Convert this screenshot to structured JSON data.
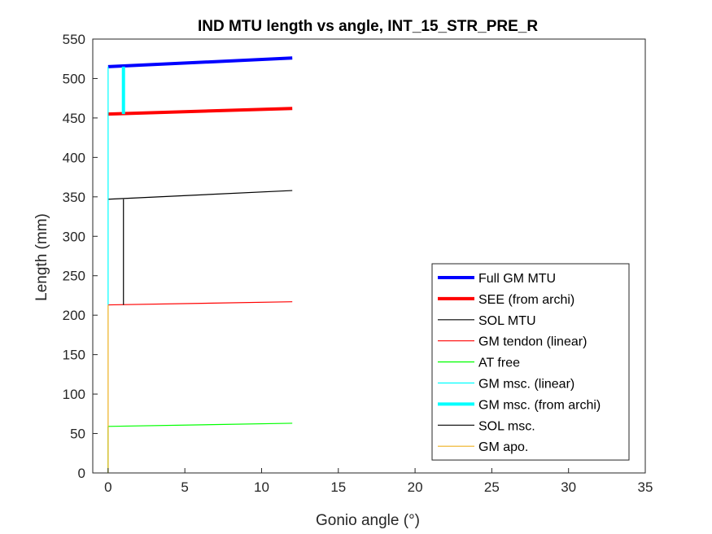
{
  "chart_data": {
    "type": "line",
    "title": "IND MTU length vs angle, INT_15_STR_PRE_R",
    "xlabel": "Gonio angle (°)",
    "ylabel": "Length (mm)",
    "xlim": [
      -1,
      35
    ],
    "ylim": [
      0,
      550
    ],
    "xticks": [
      "0",
      "5",
      "10",
      "15",
      "20",
      "25",
      "30",
      "35"
    ],
    "yticks": [
      "0",
      "50",
      "100",
      "150",
      "200",
      "250",
      "300",
      "350",
      "400",
      "450",
      "500",
      "550"
    ],
    "grid": false,
    "legend_position": "lower-right",
    "series": [
      {
        "name": "Full GM MTU",
        "color": "#0000ff",
        "width": "thick",
        "x": [
          0,
          12
        ],
        "y": [
          515,
          526
        ]
      },
      {
        "name": "SEE (from archi)",
        "color": "#ff0000",
        "width": "thick",
        "x": [
          0,
          12
        ],
        "y": [
          455,
          462
        ]
      },
      {
        "name": "SOL MTU",
        "color": "#000000",
        "width": "thin",
        "x": [
          0,
          12
        ],
        "y": [
          347,
          358
        ]
      },
      {
        "name": "GM tendon (linear)",
        "color": "#ff0000",
        "width": "thin",
        "x": [
          0,
          12
        ],
        "y": [
          213,
          217
        ]
      },
      {
        "name": "AT free",
        "color": "#00ff00",
        "width": "thin",
        "x": [
          0,
          12
        ],
        "y": [
          59,
          63
        ]
      },
      {
        "name": "GM msc. (linear)",
        "color": "#00ffff",
        "width": "thin",
        "x": [
          0,
          0
        ],
        "y": [
          213,
          515
        ]
      },
      {
        "name": "GM msc. (from archi)",
        "color": "#00ffff",
        "width": "thick",
        "x": [
          1,
          1
        ],
        "y": [
          455,
          515
        ]
      },
      {
        "name": "SOL msc.",
        "color": "#000000",
        "width": "thin",
        "x": [
          1,
          1
        ],
        "y": [
          213,
          347
        ]
      },
      {
        "name": "GM apo.",
        "color": "#edb120",
        "width": "thin",
        "x": [
          0,
          0
        ],
        "y": [
          0,
          213
        ]
      }
    ],
    "extra_segments": [
      {
        "color": "#00ff00",
        "width": "thin",
        "x": [
          0,
          0
        ],
        "y": [
          0,
          59
        ]
      }
    ]
  }
}
